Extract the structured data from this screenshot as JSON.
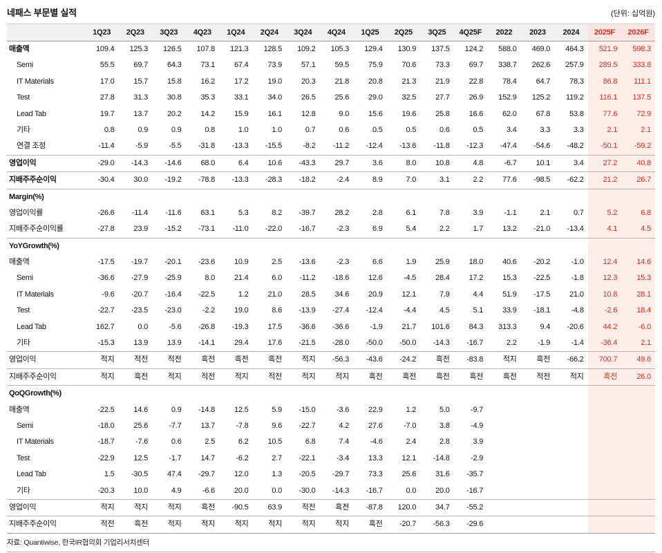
{
  "title": "네패스 부문별 실적",
  "unit": "(단위: 십억원)",
  "footer": "자료: Quantiwise, 한국IR협의회 기업리서치센터",
  "colors": {
    "accent_red": "#e02b1d",
    "forecast_bg": "#fdeeea",
    "forecast_header_bg": "#f9e6e2",
    "header_bg": "#f0f0f0"
  },
  "table": {
    "columns": [
      "1Q23",
      "2Q23",
      "3Q23",
      "4Q23",
      "1Q24",
      "2Q24",
      "3Q24",
      "4Q24",
      "1Q25",
      "2Q25",
      "3Q25",
      "4Q25F",
      "2022",
      "2023",
      "2024",
      "2025F",
      "2026F"
    ],
    "forecast_column_count": 2,
    "rows": [
      {
        "label": "매출액",
        "bold": true,
        "values": [
          "109.4",
          "125.3",
          "126.5",
          "107.8",
          "121.3",
          "128.5",
          "109.2",
          "105.3",
          "129.4",
          "130.9",
          "137.5",
          "124.2",
          "588.0",
          "469.0",
          "464.3",
          "521.9",
          "598.3"
        ]
      },
      {
        "label": "Semi",
        "indent": true,
        "values": [
          "55.5",
          "69.7",
          "64.3",
          "73.1",
          "67.4",
          "73.9",
          "57.1",
          "59.5",
          "75.9",
          "70.6",
          "73.3",
          "69.7",
          "338.7",
          "262.6",
          "257.9",
          "289.5",
          "333.8"
        ]
      },
      {
        "label": "IT Materials",
        "indent": true,
        "values": [
          "17.0",
          "15.7",
          "15.8",
          "16.2",
          "17.2",
          "19.0",
          "20.3",
          "21.8",
          "20.8",
          "21.3",
          "21.9",
          "22.8",
          "78.4",
          "64.7",
          "78.3",
          "86.8",
          "111.1"
        ]
      },
      {
        "label": "Test",
        "indent": true,
        "values": [
          "27.8",
          "31.3",
          "30.8",
          "35.3",
          "33.1",
          "34.0",
          "26.5",
          "25.6",
          "29.0",
          "32.5",
          "27.7",
          "26.9",
          "152.9",
          "125.2",
          "119.2",
          "116.1",
          "137.5"
        ]
      },
      {
        "label": "Lead Tab",
        "indent": true,
        "values": [
          "19.7",
          "13.7",
          "20.2",
          "14.2",
          "15.9",
          "16.1",
          "12.8",
          "9.0",
          "15.6",
          "19.6",
          "25.8",
          "16.6",
          "62.0",
          "67.8",
          "53.8",
          "77.6",
          "72.9"
        ]
      },
      {
        "label": "기타",
        "indent": true,
        "values": [
          "0.8",
          "0.9",
          "0.9",
          "0.8",
          "1.0",
          "1.0",
          "0.7",
          "0.6",
          "0.5",
          "0.5",
          "0.6",
          "0.5",
          "3.4",
          "3.3",
          "3.3",
          "2.1",
          "2.1"
        ]
      },
      {
        "label": "연결 조정",
        "indent": true,
        "values": [
          "-11.4",
          "-5.9",
          "-5.5",
          "-31.8",
          "-13.3",
          "-15.5",
          "-8.2",
          "-11.2",
          "-12.4",
          "-13.6",
          "-11.8",
          "-12.3",
          "-47.4",
          "-54.6",
          "-48.2",
          "-50.1",
          "-59.2"
        ]
      },
      {
        "label": "영업이익",
        "bold": true,
        "top": true,
        "values": [
          "-29.0",
          "-14.3",
          "-14.6",
          "68.0",
          "6.4",
          "10.6",
          "-43.3",
          "29.7",
          "3.6",
          "8.0",
          "10.8",
          "4.8",
          "-6.7",
          "10.1",
          "3.4",
          "27.2",
          "40.8"
        ]
      },
      {
        "label": "지배주주순이익",
        "bold": true,
        "top": true,
        "values": [
          "-30.4",
          "30.0",
          "-19.2",
          "-78.8",
          "-13.3",
          "-28.3",
          "-18.2",
          "-2.4",
          "8.9",
          "7.0",
          "3.1",
          "2.2",
          "77.6",
          "-98.5",
          "-62.2",
          "21.2",
          "26.7"
        ]
      },
      {
        "label": "Margin(%)",
        "section": true,
        "top": true,
        "values": []
      },
      {
        "label": "영업이익률",
        "values": [
          "-26.6",
          "-11.4",
          "-11.6",
          "63.1",
          "5.3",
          "8.2",
          "-39.7",
          "28.2",
          "2.8",
          "6.1",
          "7.8",
          "3.9",
          "-1.1",
          "2.1",
          "0.7",
          "5.2",
          "6.8"
        ]
      },
      {
        "label": "지배주주순이익률",
        "values": [
          "-27.8",
          "23.9",
          "-15.2",
          "-73.1",
          "-11.0",
          "-22.0",
          "-16.7",
          "-2.3",
          "6.9",
          "5.4",
          "2.2",
          "1.7",
          "13.2",
          "-21.0",
          "-13.4",
          "4.1",
          "4.5"
        ]
      },
      {
        "label": "YoYGrowth(%)",
        "section": true,
        "top": true,
        "values": []
      },
      {
        "label": "매출액",
        "values": [
          "-17.5",
          "-19.7",
          "-20.1",
          "-23.6",
          "10.9",
          "2.5",
          "-13.6",
          "-2.3",
          "6.6",
          "1.9",
          "25.9",
          "18.0",
          "40.6",
          "-20.2",
          "-1.0",
          "12.4",
          "14.6"
        ]
      },
      {
        "label": "Semi",
        "indent": true,
        "values": [
          "-36.6",
          "-27.9",
          "-25.9",
          "8.0",
          "21.4",
          "6.0",
          "-11.2",
          "-18.6",
          "12.6",
          "-4.5",
          "28.4",
          "17.2",
          "15.3",
          "-22.5",
          "-1.8",
          "12.3",
          "15.3"
        ]
      },
      {
        "label": "IT Materials",
        "indent": true,
        "values": [
          "-9.6",
          "-20.7",
          "-16.4",
          "-22.5",
          "1.2",
          "21.0",
          "28.5",
          "34.6",
          "20.9",
          "12.1",
          "7.9",
          "4.4",
          "51.9",
          "-17.5",
          "21.0",
          "10.8",
          "28.1"
        ]
      },
      {
        "label": "Test",
        "indent": true,
        "values": [
          "-22.7",
          "-23.5",
          "-23.0",
          "-2.2",
          "19.0",
          "8.6",
          "-13.9",
          "-27.4",
          "-12.4",
          "-4.4",
          "4.5",
          "5.1",
          "33.9",
          "-18.1",
          "-4.8",
          "-2.6",
          "18.4"
        ]
      },
      {
        "label": "Lead Tab",
        "indent": true,
        "values": [
          "162.7",
          "0.0",
          "-5.6",
          "-26.8",
          "-19.3",
          "17.5",
          "-36.6",
          "-36.6",
          "-1.9",
          "21.7",
          "101.6",
          "84.3",
          "313.3",
          "9.4",
          "-20.6",
          "44.2",
          "-6.0"
        ]
      },
      {
        "label": "기타",
        "indent": true,
        "values": [
          "-15.3",
          "13.9",
          "13.9",
          "-14.1",
          "29.4",
          "17.6",
          "-21.5",
          "-28.0",
          "-50.0",
          "-50.0",
          "-14.3",
          "-16.7",
          "2.2",
          "-1.9",
          "-1.4",
          "-36.4",
          "2.1"
        ]
      },
      {
        "label": "영업이익",
        "top": true,
        "values": [
          "적지",
          "적전",
          "적전",
          "흑전",
          "흑전",
          "흑전",
          "적지",
          "-56.3",
          "-43.6",
          "-24.2",
          "흑전",
          "-83.8",
          "적지",
          "흑전",
          "-66.2",
          "700.7",
          "49.6"
        ]
      },
      {
        "label": "지배주주순이익",
        "top": true,
        "bottom": true,
        "values": [
          "적지",
          "흑전",
          "적지",
          "적전",
          "적지",
          "적전",
          "적지",
          "적지",
          "흑전",
          "흑전",
          "흑전",
          "흑전",
          "흑전",
          "적전",
          "적지",
          "흑전",
          "26.0"
        ]
      },
      {
        "label": "QoQGrowth(%)",
        "section": true,
        "top": true,
        "values": []
      },
      {
        "label": "매출액",
        "values": [
          "-22.5",
          "14.6",
          "0.9",
          "-14.8",
          "12.5",
          "5.9",
          "-15.0",
          "-3.6",
          "22.9",
          "1.2",
          "5.0",
          "-9.7",
          "",
          "",
          "",
          "",
          ""
        ]
      },
      {
        "label": "Semi",
        "indent": true,
        "values": [
          "-18.0",
          "25.6",
          "-7.7",
          "13.7",
          "-7.8",
          "9.6",
          "-22.7",
          "4.2",
          "27.6",
          "-7.0",
          "3.8",
          "-4.9",
          "",
          "",
          "",
          "",
          ""
        ]
      },
      {
        "label": "IT Materials",
        "indent": true,
        "values": [
          "-18.7",
          "-7.6",
          "0.6",
          "2.5",
          "6.2",
          "10.5",
          "6.8",
          "7.4",
          "-4.6",
          "2.4",
          "2.8",
          "3.9",
          "",
          "",
          "",
          "",
          ""
        ]
      },
      {
        "label": "Test",
        "indent": true,
        "values": [
          "-22.9",
          "12.5",
          "-1.7",
          "14.7",
          "-6.2",
          "2.7",
          "-22.1",
          "-3.4",
          "13.3",
          "12.1",
          "-14.8",
          "-2.9",
          "",
          "",
          "",
          "",
          ""
        ]
      },
      {
        "label": "Lead Tab",
        "indent": true,
        "values": [
          "1.5",
          "-30.5",
          "47.4",
          "-29.7",
          "12.0",
          "1.3",
          "-20.5",
          "-29.7",
          "73.3",
          "25.6",
          "31.6",
          "-35.7",
          "",
          "",
          "",
          "",
          ""
        ]
      },
      {
        "label": "기타",
        "indent": true,
        "values": [
          "-20.3",
          "10.0",
          "4.9",
          "-6.6",
          "20.0",
          "0.0",
          "-30.0",
          "-14.3",
          "-16.7",
          "0.0",
          "20.0",
          "-16.7",
          "",
          "",
          "",
          "",
          ""
        ]
      },
      {
        "label": "영업이익",
        "top": true,
        "values": [
          "적지",
          "적지",
          "적지",
          "흑전",
          "-90.5",
          "63.9",
          "적전",
          "흑전",
          "-87.8",
          "120.0",
          "34.7",
          "-55.2",
          "",
          "",
          "",
          "",
          ""
        ]
      },
      {
        "label": "지배주주순이익",
        "top": true,
        "values": [
          "적전",
          "흑전",
          "적지",
          "적지",
          "적지",
          "적지",
          "적지",
          "적지",
          "흑전",
          "-20.7",
          "-56.3",
          "-29.6",
          "",
          "",
          "",
          "",
          ""
        ]
      }
    ]
  }
}
